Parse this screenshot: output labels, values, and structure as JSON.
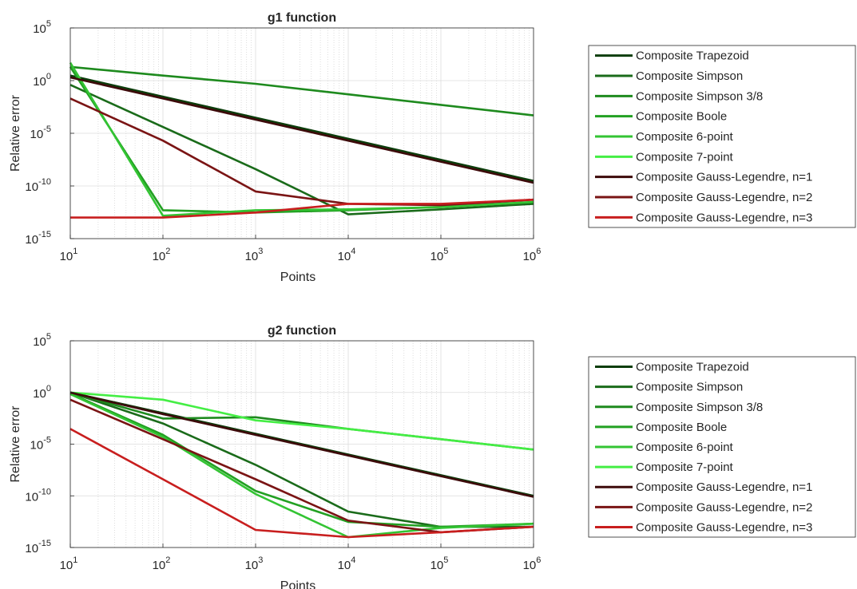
{
  "chart_data": [
    {
      "type": "line",
      "title": "g1 function",
      "xlabel": "Points",
      "ylabel": "Relative error",
      "xscale": "log",
      "yscale": "log",
      "xlim": [
        10,
        1000000
      ],
      "ylim": [
        1e-15,
        100000.0
      ],
      "grid": "on (minor x grid)",
      "x_ticks": [
        {
          "base": "10",
          "exp": "1"
        },
        {
          "base": "10",
          "exp": "2"
        },
        {
          "base": "10",
          "exp": "3"
        },
        {
          "base": "10",
          "exp": "4"
        },
        {
          "base": "10",
          "exp": "5"
        },
        {
          "base": "10",
          "exp": "6"
        }
      ],
      "y_ticks": [
        {
          "base": "10",
          "exp": "-15",
          "value": 1e-15
        },
        {
          "base": "10",
          "exp": "-10",
          "value": 1e-10
        },
        {
          "base": "10",
          "exp": "-5",
          "value": 1e-05
        },
        {
          "base": "10",
          "exp": "0",
          "value": 1
        },
        {
          "base": "10",
          "exp": "5",
          "value": 100000.0
        }
      ],
      "x": [
        10,
        100,
        1000,
        10000,
        100000,
        1000000
      ],
      "series": [
        {
          "name": "Composite Trapezoid",
          "color": "#0b3d0b",
          "values": [
            3,
            0.03,
            0.0003,
            3e-06,
            3e-08,
            3e-10
          ]
        },
        {
          "name": "Composite Simpson",
          "color": "#1a6b1a",
          "values": [
            0.4,
            4e-05,
            4e-09,
            2e-13,
            6e-13,
            2e-12
          ]
        },
        {
          "name": "Composite Simpson 3/8",
          "color": "#1e8a1e",
          "values": [
            20,
            3,
            0.5,
            0.05,
            0.005,
            0.0005
          ]
        },
        {
          "name": "Composite Boole",
          "color": "#22a022",
          "values": [
            20,
            5e-13,
            3e-13,
            5e-13,
            1e-12,
            3e-12
          ]
        },
        {
          "name": "Composite 6-point",
          "color": "#33c433",
          "values": [
            50,
            1.5e-13,
            5e-13,
            6e-13,
            1e-12,
            3e-12
          ]
        },
        {
          "name": "Composite 7-point",
          "color": "#44ee44",
          "values": [
            null,
            null,
            null,
            null,
            null,
            null
          ]
        },
        {
          "name": "Composite Gauss-Legendre, n=1",
          "color": "#3d0a0a",
          "values": [
            2,
            0.02,
            0.0002,
            2e-06,
            2e-08,
            2e-10
          ]
        },
        {
          "name": "Composite Gauss-Legendre, n=2",
          "color": "#7a1414",
          "values": [
            0.02,
            2e-06,
            3e-11,
            2e-12,
            1.5e-12,
            5e-12
          ]
        },
        {
          "name": "Composite Gauss-Legendre, n=3",
          "color": "#c81e1e",
          "values": [
            1e-13,
            1e-13,
            3e-13,
            2e-12,
            2e-12,
            5e-12
          ]
        }
      ],
      "legend": "outside right"
    },
    {
      "type": "line",
      "title": "g2 function",
      "xlabel": "Points",
      "ylabel": "Relative error",
      "xscale": "log",
      "yscale": "log",
      "xlim": [
        10,
        1000000
      ],
      "ylim": [
        1e-15,
        100000.0
      ],
      "grid": "on (minor x grid)",
      "x_ticks": [
        {
          "base": "10",
          "exp": "1"
        },
        {
          "base": "10",
          "exp": "2"
        },
        {
          "base": "10",
          "exp": "3"
        },
        {
          "base": "10",
          "exp": "4"
        },
        {
          "base": "10",
          "exp": "5"
        },
        {
          "base": "10",
          "exp": "6"
        }
      ],
      "y_ticks": [
        {
          "base": "10",
          "exp": "-15",
          "value": 1e-15
        },
        {
          "base": "10",
          "exp": "-10",
          "value": 1e-10
        },
        {
          "base": "10",
          "exp": "-5",
          "value": 1e-05
        },
        {
          "base": "10",
          "exp": "0",
          "value": 1
        },
        {
          "base": "10",
          "exp": "5",
          "value": 100000.0
        }
      ],
      "x": [
        10,
        100,
        1000,
        10000,
        100000,
        1000000
      ],
      "series": [
        {
          "name": "Composite Trapezoid",
          "color": "#0b3d0b",
          "values": [
            1,
            0.01,
            0.0001,
            1e-06,
            1e-08,
            1e-10
          ]
        },
        {
          "name": "Composite Simpson",
          "color": "#1a6b1a",
          "values": [
            1,
            0.001,
            1e-07,
            3e-12,
            1e-13,
            1e-13
          ]
        },
        {
          "name": "Composite Simpson 3/8",
          "color": "#1e8a1e",
          "values": [
            1,
            0.003,
            0.004,
            0.0003,
            3e-05,
            3e-06
          ]
        },
        {
          "name": "Composite Boole",
          "color": "#22a022",
          "values": [
            0.8,
            8e-05,
            3e-10,
            3e-13,
            1e-13,
            2e-13
          ]
        },
        {
          "name": "Composite 6-point",
          "color": "#33c433",
          "values": [
            0.7,
            5e-05,
            1.5e-10,
            1e-14,
            8e-14,
            2e-13
          ]
        },
        {
          "name": "Composite 7-point",
          "color": "#44ee44",
          "values": [
            1,
            0.2,
            0.002,
            0.0003,
            3e-05,
            3e-06
          ]
        },
        {
          "name": "Composite Gauss-Legendre, n=1",
          "color": "#3d0a0a",
          "values": [
            1,
            0.008,
            8e-05,
            8e-07,
            8e-09,
            8e-11
          ]
        },
        {
          "name": "Composite Gauss-Legendre, n=2",
          "color": "#7a1414",
          "values": [
            0.2,
            3e-05,
            4e-09,
            4e-13,
            3e-14,
            1e-13
          ]
        },
        {
          "name": "Composite Gauss-Legendre, n=3",
          "color": "#c81e1e",
          "values": [
            0.0003,
            4e-09,
            5e-14,
            1e-14,
            3e-14,
            1e-13
          ]
        }
      ],
      "legend": "outside right"
    }
  ]
}
